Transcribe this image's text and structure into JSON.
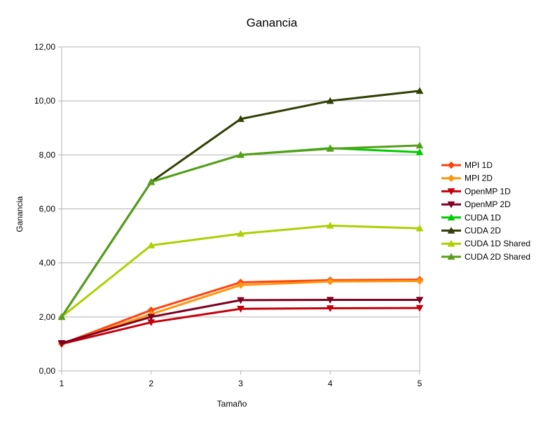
{
  "chart_data": {
    "type": "line",
    "title": "Ganancia",
    "xlabel": "Tamaño",
    "ylabel": "Ganancia",
    "x": [
      1,
      2,
      3,
      4,
      5
    ],
    "x_tick_labels": [
      "1",
      "2",
      "3",
      "4",
      "5"
    ],
    "ylim": [
      0,
      12
    ],
    "y_ticks": [
      0,
      2,
      4,
      6,
      8,
      10,
      12
    ],
    "y_tick_labels": [
      "0,00",
      "2,00",
      "4,00",
      "6,00",
      "8,00",
      "10,00",
      "12,00"
    ],
    "grid": "horizontal",
    "legend_position": "right",
    "series": [
      {
        "name": "MPI 1D",
        "color": "#ff420e",
        "marker": "diamond",
        "values": [
          1.0,
          2.25,
          3.28,
          3.36,
          3.38
        ]
      },
      {
        "name": "MPI 2D",
        "color": "#ff950e",
        "marker": "diamond",
        "values": [
          1.0,
          2.1,
          3.18,
          3.31,
          3.33
        ]
      },
      {
        "name": "OpenMP 1D",
        "color": "#c5000b",
        "marker": "triangle-down",
        "values": [
          1.0,
          1.8,
          2.3,
          2.32,
          2.33
        ]
      },
      {
        "name": "OpenMP 2D",
        "color": "#7e0021",
        "marker": "triangle-down",
        "values": [
          1.03,
          2.0,
          2.62,
          2.63,
          2.63
        ]
      },
      {
        "name": "CUDA 1D",
        "color": "#00cc00",
        "marker": "triangle-up",
        "values": [
          2.0,
          7.0,
          8.0,
          8.25,
          8.1
        ]
      },
      {
        "name": "CUDA 2D",
        "color": "#314004",
        "marker": "triangle-up",
        "values": [
          2.0,
          7.0,
          9.33,
          10.0,
          10.37
        ]
      },
      {
        "name": "CUDA 1D Shared",
        "color": "#aecf00",
        "marker": "triangle-up",
        "values": [
          2.0,
          4.65,
          5.08,
          5.38,
          5.28
        ]
      },
      {
        "name": "CUDA 2D Shared",
        "color": "#579d1c",
        "marker": "triangle-up",
        "values": [
          2.0,
          7.0,
          8.0,
          8.23,
          8.35
        ]
      }
    ]
  }
}
